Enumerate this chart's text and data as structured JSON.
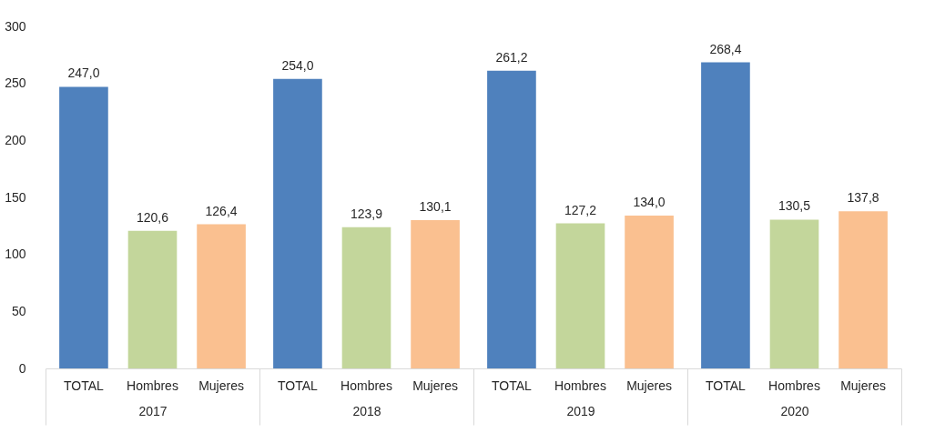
{
  "chart_data": {
    "type": "bar",
    "categories": [
      "2017",
      "2018",
      "2019",
      "2020"
    ],
    "series": [
      {
        "name": "TOTAL",
        "color": "#4f81bd",
        "values": [
          247.0,
          254.0,
          261.2,
          268.4
        ],
        "value_labels": [
          "247,0",
          "254,0",
          "261,2",
          "268,4"
        ]
      },
      {
        "name": "Hombres",
        "color": "#c3d69b",
        "values": [
          120.6,
          123.9,
          127.2,
          130.5
        ],
        "value_labels": [
          "120,6",
          "123,9",
          "127,2",
          "130,5"
        ]
      },
      {
        "name": "Mujeres",
        "color": "#fac090",
        "values": [
          126.4,
          130.1,
          134.0,
          137.8
        ],
        "value_labels": [
          "126,4",
          "130,1",
          "134,0",
          "137,8"
        ]
      }
    ],
    "ylim": [
      0,
      300
    ],
    "yticks": [
      0,
      50,
      100,
      150,
      200,
      250,
      300
    ]
  }
}
